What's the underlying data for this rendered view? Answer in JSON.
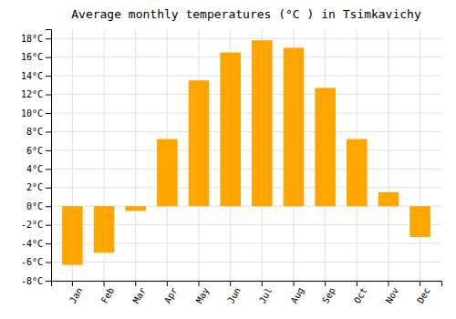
{
  "chart_data": {
    "type": "bar",
    "title": "Average monthly temperatures (°C ) in Tsimkavichy",
    "categories": [
      "Jan",
      "Feb",
      "Mar",
      "Apr",
      "May",
      "Jun",
      "Jul",
      "Aug",
      "Sep",
      "Oct",
      "Nov",
      "Dec"
    ],
    "values": [
      -6.3,
      -5.0,
      -0.5,
      7.2,
      13.5,
      16.5,
      17.8,
      17.0,
      12.7,
      7.2,
      1.5,
      -3.3
    ],
    "color": "#FFA500",
    "ylim": [
      -8,
      19
    ],
    "yticks": [
      {
        "value": -8,
        "label": "-8°C"
      },
      {
        "value": -6,
        "label": "-6°C"
      },
      {
        "value": -4,
        "label": "-4°C"
      },
      {
        "value": -2,
        "label": "-2°C"
      },
      {
        "value": 0,
        "label": "0°C"
      },
      {
        "value": 2,
        "label": "2°C"
      },
      {
        "value": 4,
        "label": "4°C"
      },
      {
        "value": 6,
        "label": "6°C"
      },
      {
        "value": 8,
        "label": "8°C"
      },
      {
        "value": 10,
        "label": "10°C"
      },
      {
        "value": 12,
        "label": "12°C"
      },
      {
        "value": 14,
        "label": "14°C"
      },
      {
        "value": 16,
        "label": "16°C"
      },
      {
        "value": 18,
        "label": "18°C"
      }
    ],
    "grid": true
  }
}
